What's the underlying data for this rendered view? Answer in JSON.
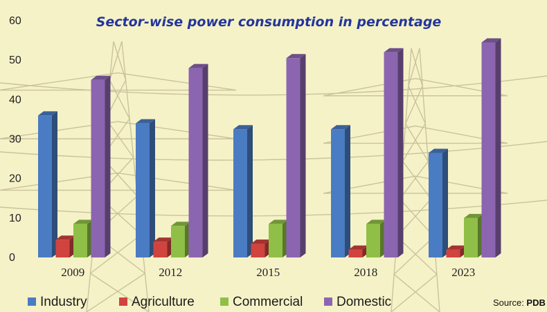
{
  "chart_data": {
    "type": "bar",
    "title": "Sector-wise power consumption in percentage",
    "categories": [
      "2009",
      "2012",
      "2015",
      "2018",
      "2023"
    ],
    "series": [
      {
        "name": "Industry",
        "color": "#4a7cc3",
        "values": [
          36,
          34,
          32.5,
          32.5,
          26.5
        ]
      },
      {
        "name": "Agriculture",
        "color": "#d0433f",
        "values": [
          4.5,
          4,
          3.5,
          2,
          2
        ]
      },
      {
        "name": "Commercial",
        "color": "#8fbf47",
        "values": [
          8.5,
          8,
          8.5,
          8.5,
          10
        ]
      },
      {
        "name": "Domestic",
        "color": "#8c65b0",
        "values": [
          45,
          48,
          50.5,
          52,
          54.5
        ]
      }
    ],
    "yticks": [
      0,
      10,
      20,
      30,
      40,
      50,
      60
    ],
    "ylim": [
      0,
      60
    ],
    "grid": false,
    "legend": "bottom",
    "xlabel": "",
    "ylabel": ""
  },
  "source": {
    "prefix": "Source: ",
    "name": "PDB"
  }
}
